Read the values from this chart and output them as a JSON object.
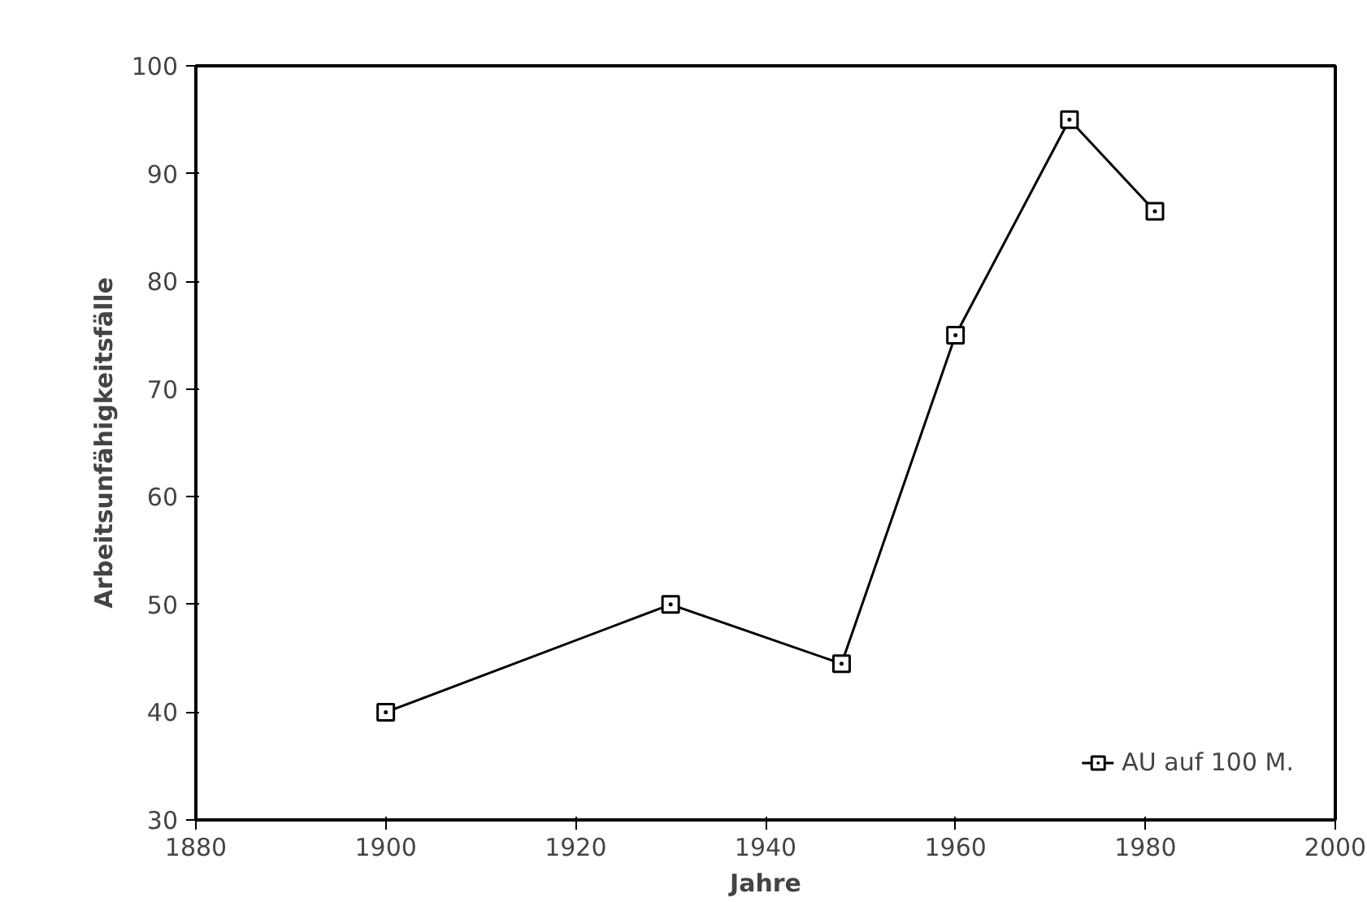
{
  "chart_data": {
    "type": "line",
    "xlabel": "Jahre",
    "ylabel": "Arbeitsunfähigkeitsfälle",
    "x": [
      1900,
      1930,
      1948,
      1960,
      1972,
      1981
    ],
    "series": [
      {
        "name": "AU auf 100 M.",
        "color": "#000000",
        "values": [
          40,
          50,
          44.5,
          75,
          95,
          86.5
        ]
      }
    ],
    "xlim": [
      1880,
      2000
    ],
    "xticks": [
      1880,
      1900,
      1920,
      1940,
      1960,
      1980,
      2000
    ],
    "ylim": [
      30,
      100
    ],
    "yticks": [
      30,
      40,
      50,
      60,
      70,
      80,
      90,
      100
    ],
    "grid": false,
    "legend": "bottom right",
    "marker": "square",
    "line_style": "solid"
  }
}
